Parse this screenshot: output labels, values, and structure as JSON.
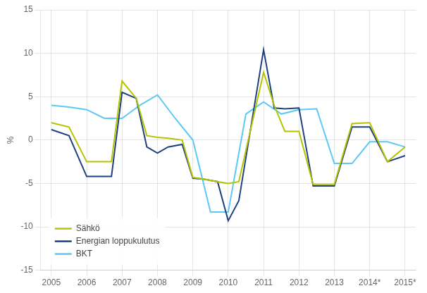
{
  "chart_data": {
    "type": "line",
    "ylabel": "%",
    "xlim": [
      2004.7,
      2015.3
    ],
    "xticks": [
      2005,
      2006,
      2007,
      2008,
      2009,
      2010,
      2011,
      2012,
      2013,
      {
        "value": 2014,
        "label": "2014*"
      },
      {
        "value": 2015,
        "label": "2015*"
      }
    ],
    "ylim": [
      -15,
      15
    ],
    "yticks": [
      -15,
      -10,
      -5,
      0,
      5,
      10,
      15
    ],
    "grid": true,
    "legend": "lower left",
    "series": [
      {
        "name": "Sähkö",
        "color": "#b5c400",
        "x": [
          2005,
          2005.5,
          2006,
          2006.3,
          2006.7,
          2007,
          2007.4,
          2007.7,
          2008,
          2008.3,
          2008.7,
          2009,
          2009.3,
          2009.7,
          2010,
          2010.3,
          2011,
          2011.3,
          2011.6,
          2012,
          2012.4,
          2012.7,
          2013,
          2013.5,
          2014,
          2014.5,
          2015
        ],
        "values": [
          2.0,
          1.5,
          -2.5,
          -2.5,
          -2.5,
          6.8,
          4.8,
          0.5,
          0.3,
          0.2,
          0.0,
          -4.3,
          -4.5,
          -4.8,
          -5.0,
          -4.8,
          7.8,
          4.0,
          1.0,
          1.0,
          -5.1,
          -5.1,
          -5.1,
          1.9,
          2.0,
          -2.5,
          -0.8
        ]
      },
      {
        "name": "Energian loppukulutus",
        "color": "#1f4080",
        "x": [
          2005,
          2005.5,
          2006,
          2006.3,
          2006.7,
          2007,
          2007.4,
          2007.7,
          2008,
          2008.3,
          2008.7,
          2009,
          2009.3,
          2009.7,
          2010,
          2010.3,
          2011,
          2011.3,
          2011.6,
          2012,
          2012.4,
          2012.7,
          2013,
          2013.5,
          2014,
          2014.5,
          2015
        ],
        "values": [
          1.2,
          0.5,
          -4.2,
          -4.2,
          -4.2,
          5.5,
          4.8,
          -0.8,
          -1.5,
          -0.8,
          -0.5,
          -4.4,
          -4.5,
          -4.8,
          -9.3,
          -7.0,
          10.4,
          3.7,
          3.6,
          3.7,
          -5.3,
          -5.3,
          -5.3,
          1.5,
          1.5,
          -2.5,
          -1.8
        ]
      },
      {
        "name": "BKT",
        "color": "#5bc8f5",
        "x": [
          2005,
          2005.5,
          2006,
          2006.5,
          2007,
          2007.5,
          2008,
          2008.5,
          2009,
          2009.5,
          2010,
          2010.5,
          2011,
          2011.5,
          2012,
          2012.5,
          2013,
          2013.5,
          2014,
          2014.5,
          2015
        ],
        "values": [
          4.0,
          3.8,
          3.5,
          2.5,
          2.5,
          4.0,
          5.2,
          2.5,
          0.0,
          -8.3,
          -8.3,
          3.0,
          4.4,
          3.0,
          3.5,
          3.6,
          -2.7,
          -2.7,
          -0.2,
          -0.2,
          -0.8
        ]
      }
    ]
  }
}
